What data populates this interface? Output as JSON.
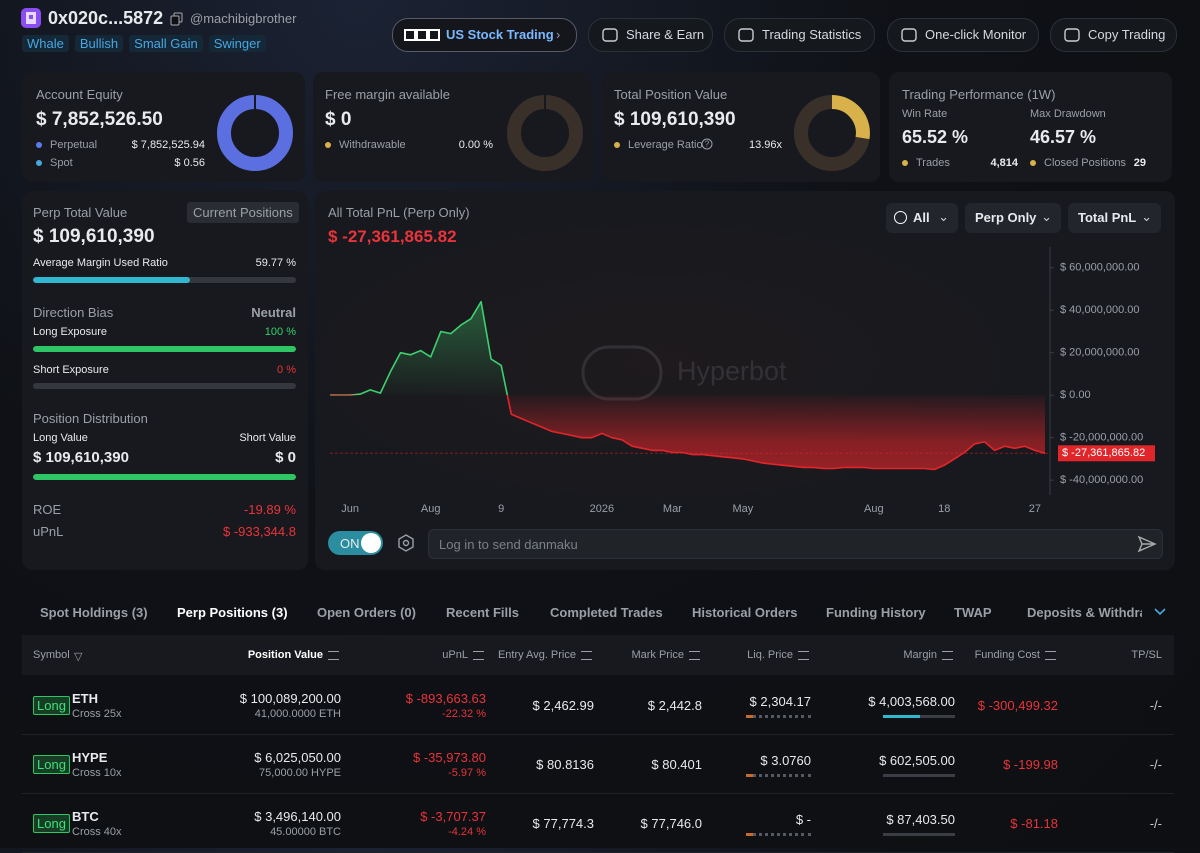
{
  "header": {
    "address": "0x020c...5872",
    "handle": "@machibigbrother",
    "tags": [
      "Whale",
      "Bullish",
      "Small Gain",
      "Swinger"
    ],
    "buttons": [
      "US Stock Trading",
      "Share & Earn",
      "Trading Statistics",
      "One-click Monitor",
      "Copy Trading"
    ]
  },
  "cards": {
    "equity": {
      "title": "Account Equity",
      "value": "$ 7,852,526.50",
      "rows": [
        {
          "label": "Perpetual",
          "value": "$ 7,852,525.94"
        },
        {
          "label": "Spot",
          "value": "$ 0.56"
        }
      ]
    },
    "free_margin": {
      "title": "Free margin available",
      "value": "$ 0",
      "rows": [
        {
          "label": "Withdrawable",
          "value": "0.00 %"
        }
      ]
    },
    "position": {
      "title": "Total Position Value",
      "value": "$ 109,610,390",
      "rows": [
        {
          "label": "Leverage Ratio",
          "value": "13.96x"
        }
      ]
    },
    "performance": {
      "title": "Trading Performance (1W)",
      "stats": [
        {
          "label": "Win Rate",
          "value": "65.52 %"
        },
        {
          "label": "Max Drawdown",
          "value": "46.57 %"
        }
      ],
      "rows": [
        {
          "label": "Trades",
          "value": "4,814"
        },
        {
          "label": "Closed Positions",
          "value": "29"
        }
      ]
    }
  },
  "perp": {
    "title": "Perp Total Value",
    "badge": "Current Positions",
    "value": "$ 109,610,390",
    "margin_ratio": {
      "label": "Average Margin Used Ratio",
      "percent": {
        "value": 59.77,
        "label": "59.77 %"
      }
    },
    "bias": {
      "label": "Direction Bias",
      "value": "Neutral"
    },
    "long_exposure": {
      "label": "Long Exposure",
      "percent": {
        "value": 100,
        "label": "100 %"
      }
    },
    "short_exposure": {
      "label": "Short Exposure",
      "percent": {
        "value": 0,
        "label": "0 %"
      }
    },
    "distribution": {
      "title": "Position Distribution",
      "long_label": "Long Value",
      "short_label": "Short Value",
      "long_value": "$ 109,610,390",
      "short_value": "$ 0"
    },
    "roe": {
      "label": "ROE",
      "value": "-19.89 %"
    },
    "upnl": {
      "label": "uPnL",
      "value": "$ -933,344.8"
    }
  },
  "chart_data": {
    "type": "area",
    "title": "All Total PnL (Perp Only)",
    "last_value_label": "$ -27,361,865.82",
    "controls": [
      "All",
      "Perp Only",
      "Total PnL"
    ],
    "watermark": "Hyperbot",
    "positive_color": "#3ecf6e",
    "negative_color": "#e0262b",
    "grid": false,
    "categories": [
      null,
      null,
      "Jun",
      null,
      null,
      null,
      null,
      null,
      null,
      null,
      "Aug",
      null,
      null,
      null,
      null,
      null,
      null,
      "9",
      null,
      null,
      null,
      null,
      null,
      null,
      null,
      null,
      null,
      "2026",
      null,
      null,
      null,
      null,
      null,
      null,
      "Mar",
      null,
      null,
      null,
      null,
      null,
      null,
      "May",
      null,
      null,
      null,
      null,
      null,
      null,
      null,
      null,
      null,
      null,
      null,
      null,
      "Aug",
      null,
      null,
      null,
      null,
      null,
      null,
      "18",
      null,
      null,
      null,
      null,
      null,
      null,
      null,
      null,
      "27",
      null
    ],
    "values": [
      0,
      0,
      0,
      500000,
      2500000,
      1000000,
      11000000,
      20000000,
      19000000,
      21000000,
      18000000,
      30000000,
      29000000,
      33000000,
      36000000,
      44000000,
      17000000,
      14000000,
      -9000000,
      -11000000,
      -13000000,
      -15000000,
      -17000000,
      -18000000,
      -19000000,
      -20000000,
      -20000000,
      -18000000,
      -20000000,
      -21000000,
      -24000000,
      -25000000,
      -26000000,
      -26000000,
      -27000000,
      -27000000,
      -28000000,
      -28000000,
      -28500000,
      -29000000,
      -29500000,
      -30000000,
      -31000000,
      -32000000,
      -32500000,
      -33000000,
      -33500000,
      -34000000,
      -34000000,
      -34500000,
      -34500000,
      -34000000,
      -34000000,
      -34000000,
      -34500000,
      -34500000,
      -34500000,
      -34500000,
      -34500000,
      -34500000,
      -35000000,
      -33000000,
      -30000000,
      -27000000,
      -23000000,
      -22000000,
      -26000000,
      -24000000,
      -25000000,
      -24000000,
      -26000000,
      -27361865.82
    ],
    "ylim": [
      -47000000,
      66000000
    ],
    "yticks": [
      {
        "value": 60000000,
        "label": "$ 60,000,000.00"
      },
      {
        "value": 40000000,
        "label": "$ 40,000,000.00"
      },
      {
        "value": 20000000,
        "label": "$ 20,000,000.00"
      },
      {
        "value": 0,
        "label": "$ 0.00"
      },
      {
        "value": -20000000,
        "label": "$ -20,000,000.00"
      },
      {
        "value": -40000000,
        "label": "$ -40,000,000.00"
      }
    ]
  },
  "danmaku": {
    "toggle": "ON",
    "placeholder": "Log in to send danmaku"
  },
  "tabs": [
    "Spot Holdings (3)",
    "Perp Positions (3)",
    "Open Orders (0)",
    "Recent Fills",
    "Completed Trades",
    "Historical Orders",
    "Funding History",
    "TWAP",
    "Deposits & Withdrawals"
  ],
  "table": {
    "headers": [
      "Symbol",
      "Position Value",
      "uPnL",
      "Entry Avg. Price",
      "Mark Price",
      "Liq. Price",
      "Margin",
      "Funding Cost",
      "TP/SL"
    ],
    "rows": [
      {
        "side": "Long",
        "symbol": "ETH",
        "leverage": "Cross 25x",
        "position_value": "$ 100,089,200.00",
        "size": "41,000.0000 ETH",
        "upnl": "$ -893,663.63",
        "upnl_pct": "-22.32 %",
        "entry": "$ 2,462.99",
        "mark": "$ 2,442.8",
        "liq": "$ 2,304.17",
        "margin": "$ 4,003,568.00",
        "funding": "$ -300,499.32",
        "tpsl": "-/-"
      },
      {
        "side": "Long",
        "symbol": "HYPE",
        "leverage": "Cross 10x",
        "position_value": "$ 6,025,050.00",
        "size": "75,000.00 HYPE",
        "upnl": "$ -35,973.80",
        "upnl_pct": "-5.97 %",
        "entry": "$ 80.8136",
        "mark": "$ 80.401",
        "liq": "$ 3.0760",
        "margin": "$ 602,505.00",
        "funding": "$ -199.98",
        "tpsl": "-/-"
      },
      {
        "side": "Long",
        "symbol": "BTC",
        "leverage": "Cross 40x",
        "position_value": "$ 3,496,140.00",
        "size": "45.00000 BTC",
        "upnl": "$ -3,707.37",
        "upnl_pct": "-4.24 %",
        "entry": "$ 77,774.3",
        "mark": "$ 77,746.0",
        "liq": "$ -",
        "margin": "$ 87,403.50",
        "funding": "$ -81.18",
        "tpsl": "-/-"
      }
    ]
  }
}
